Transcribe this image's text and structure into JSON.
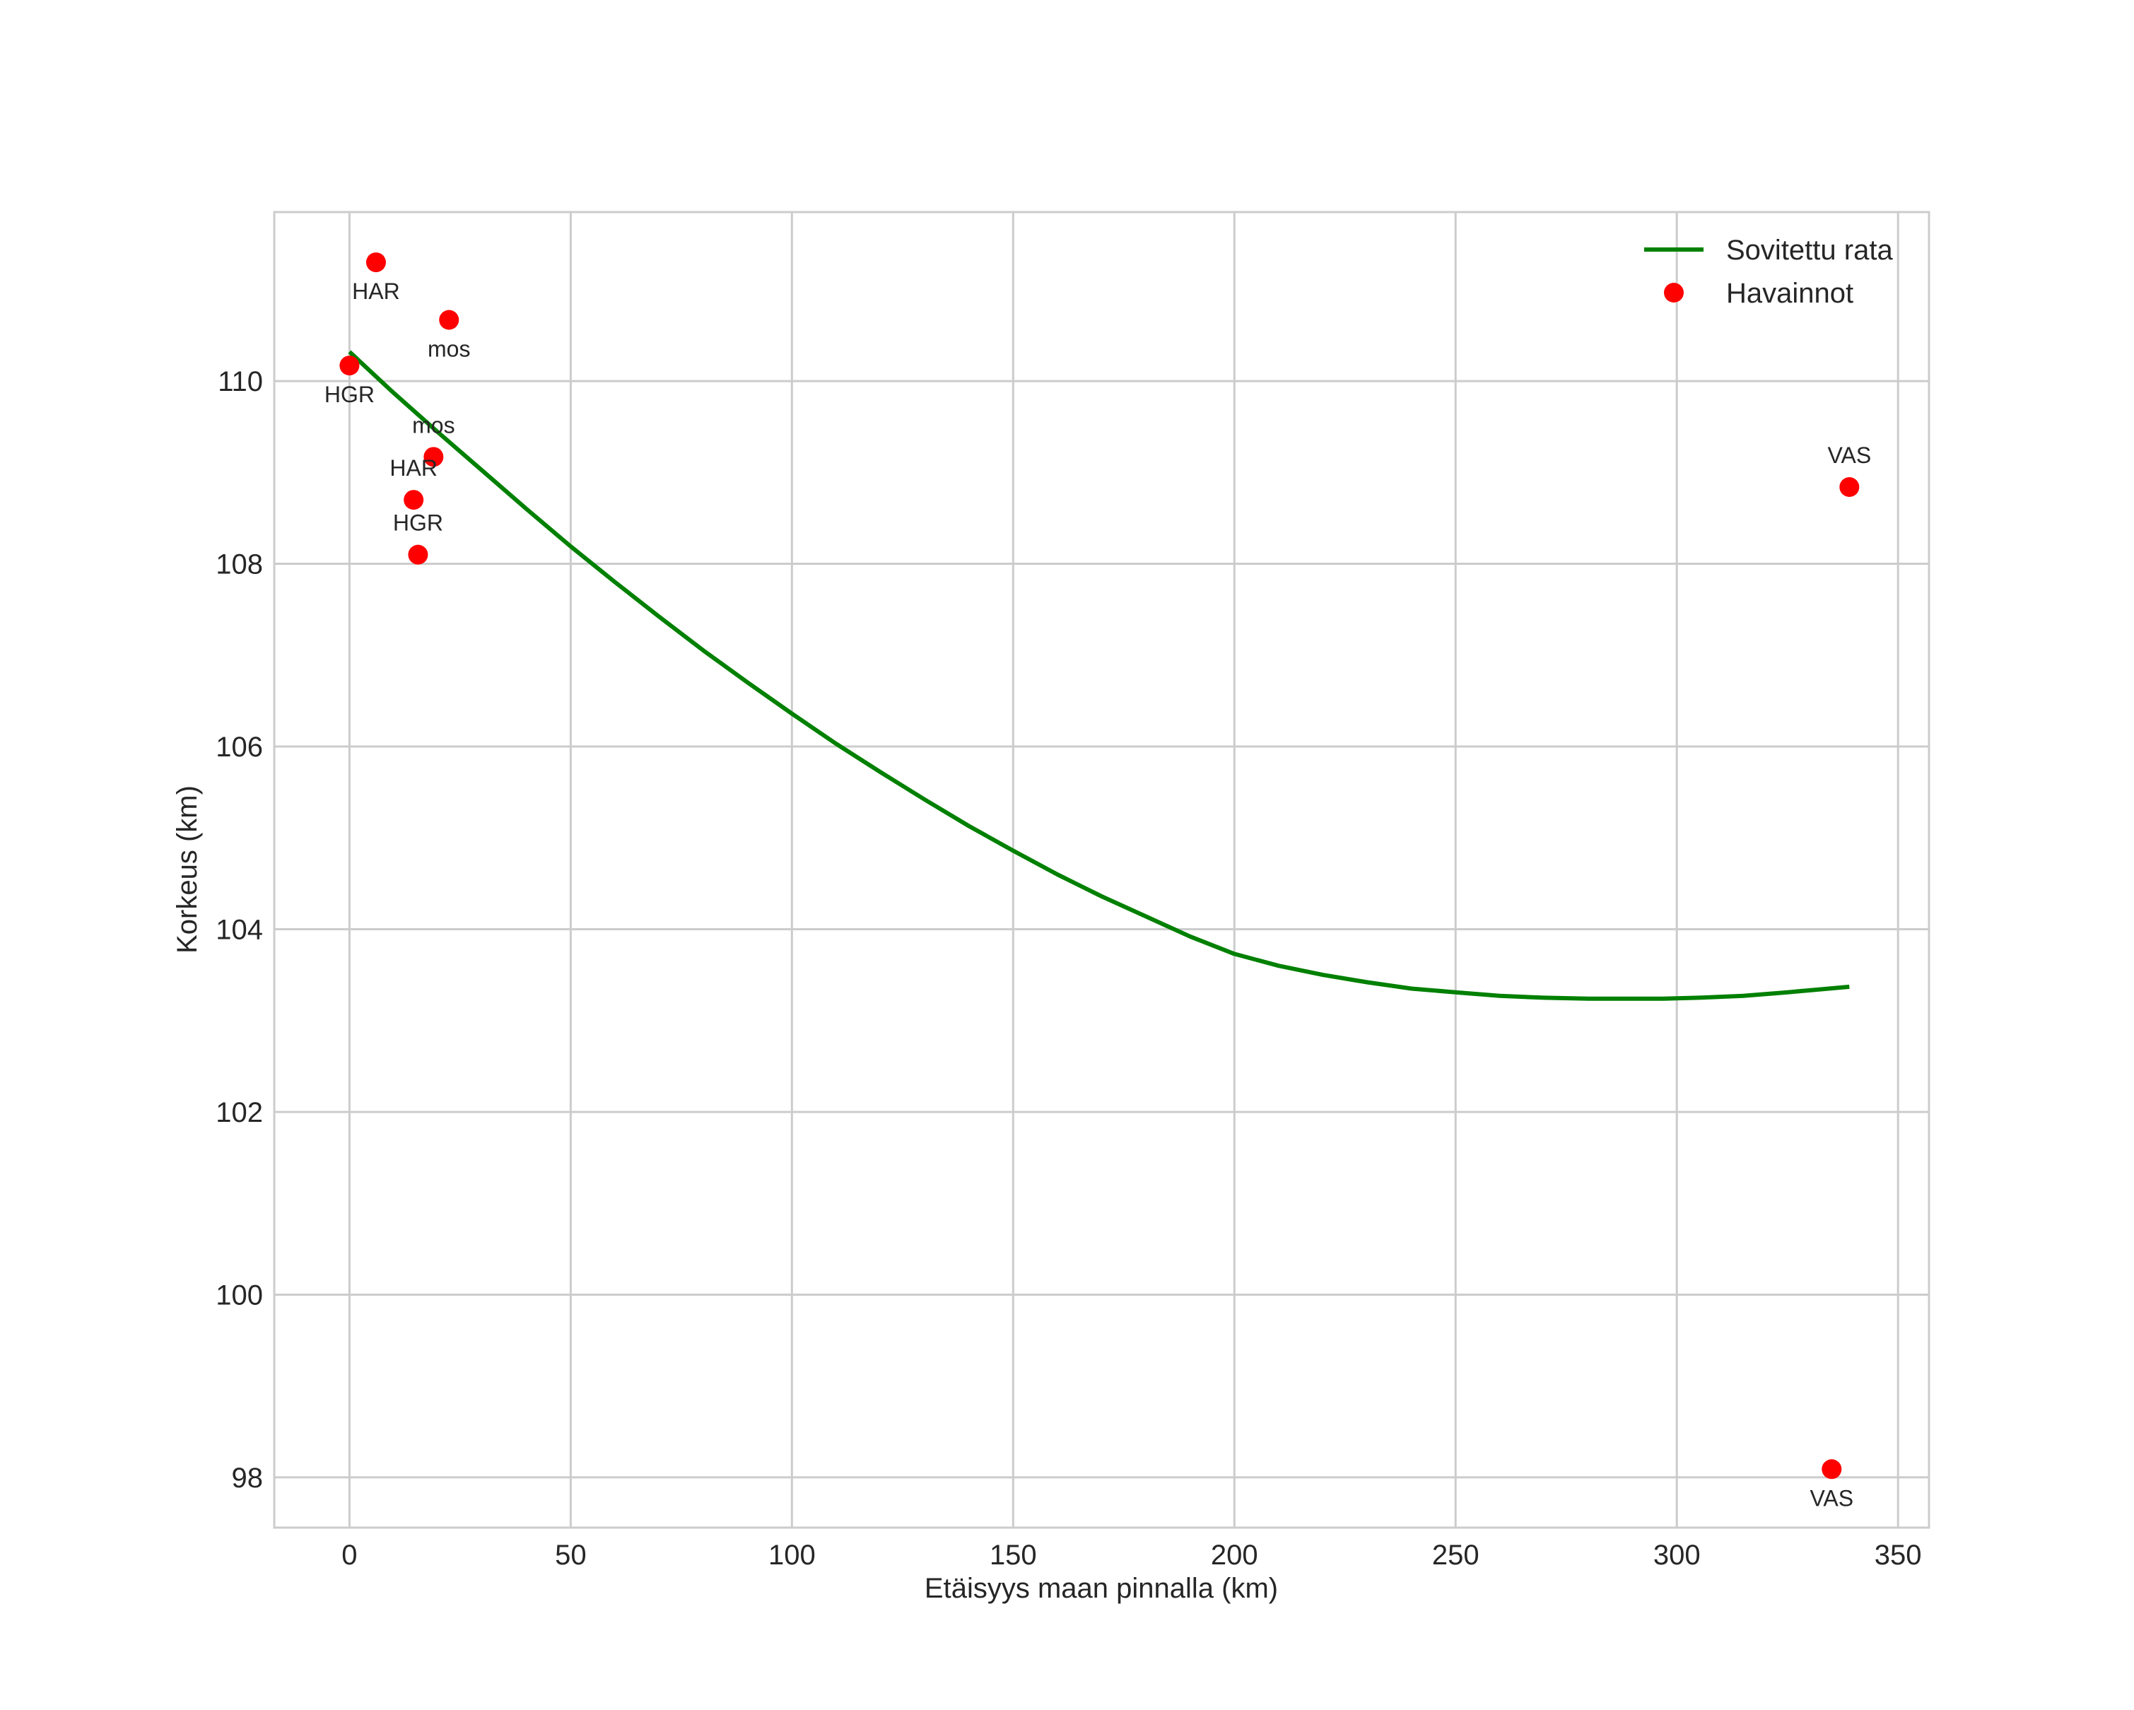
{
  "chart_data": {
    "type": "scatter",
    "title": "",
    "xlabel": "Etäisyys maan pinnalla (km)",
    "ylabel": "Korkeus (km)",
    "xlim": [
      -17,
      357
    ],
    "ylim": [
      97.45,
      111.85
    ],
    "xticks": [
      0,
      50,
      100,
      150,
      200,
      250,
      300,
      350
    ],
    "xtick_labels": [
      "0",
      "50",
      "100",
      "150",
      "200",
      "250",
      "300",
      "350"
    ],
    "yticks": [
      98,
      100,
      102,
      104,
      106,
      108,
      110
    ],
    "ytick_labels": [
      "98",
      "100",
      "102",
      "104",
      "106",
      "108",
      "110"
    ],
    "grid": true,
    "legend_position": "top-right",
    "series": [
      {
        "name": "Sovitettu rata",
        "kind": "line",
        "color": "#008000",
        "x": [
          0,
          10,
          20,
          30,
          40,
          50,
          60,
          70,
          80,
          90,
          100,
          110,
          120,
          130,
          140,
          150,
          160,
          170,
          180,
          190,
          200,
          210,
          220,
          230,
          240,
          250,
          260,
          270,
          280,
          290,
          297,
          305,
          315,
          325,
          339
        ],
        "y": [
          110.32,
          109.87,
          109.44,
          109.02,
          108.6,
          108.19,
          107.8,
          107.42,
          107.05,
          106.7,
          106.36,
          106.03,
          105.72,
          105.42,
          105.13,
          104.86,
          104.6,
          104.36,
          104.14,
          103.92,
          103.73,
          103.6,
          103.5,
          103.42,
          103.35,
          103.31,
          103.27,
          103.25,
          103.24,
          103.24,
          103.24,
          103.25,
          103.27,
          103.31,
          103.37
        ]
      },
      {
        "name": "Havainnot",
        "kind": "scatter",
        "color": "#ff0000",
        "points": [
          {
            "x": 6,
            "y": 111.3,
            "label": "HAR",
            "label_pos": "below"
          },
          {
            "x": 22.5,
            "y": 110.67,
            "label": "mos",
            "label_pos": "below"
          },
          {
            "x": 0,
            "y": 110.17,
            "label": "HGR",
            "label_pos": "below"
          },
          {
            "x": 19,
            "y": 109.17,
            "label": "mos",
            "label_pos": "above"
          },
          {
            "x": 14.5,
            "y": 108.7,
            "label": "HAR",
            "label_pos": "above"
          },
          {
            "x": 15.5,
            "y": 108.1,
            "label": "HGR",
            "label_pos": "above"
          },
          {
            "x": 339,
            "y": 108.84,
            "label": "VAS",
            "label_pos": "above"
          },
          {
            "x": 335,
            "y": 98.09,
            "label": "VAS",
            "label_pos": "below"
          }
        ]
      }
    ]
  }
}
